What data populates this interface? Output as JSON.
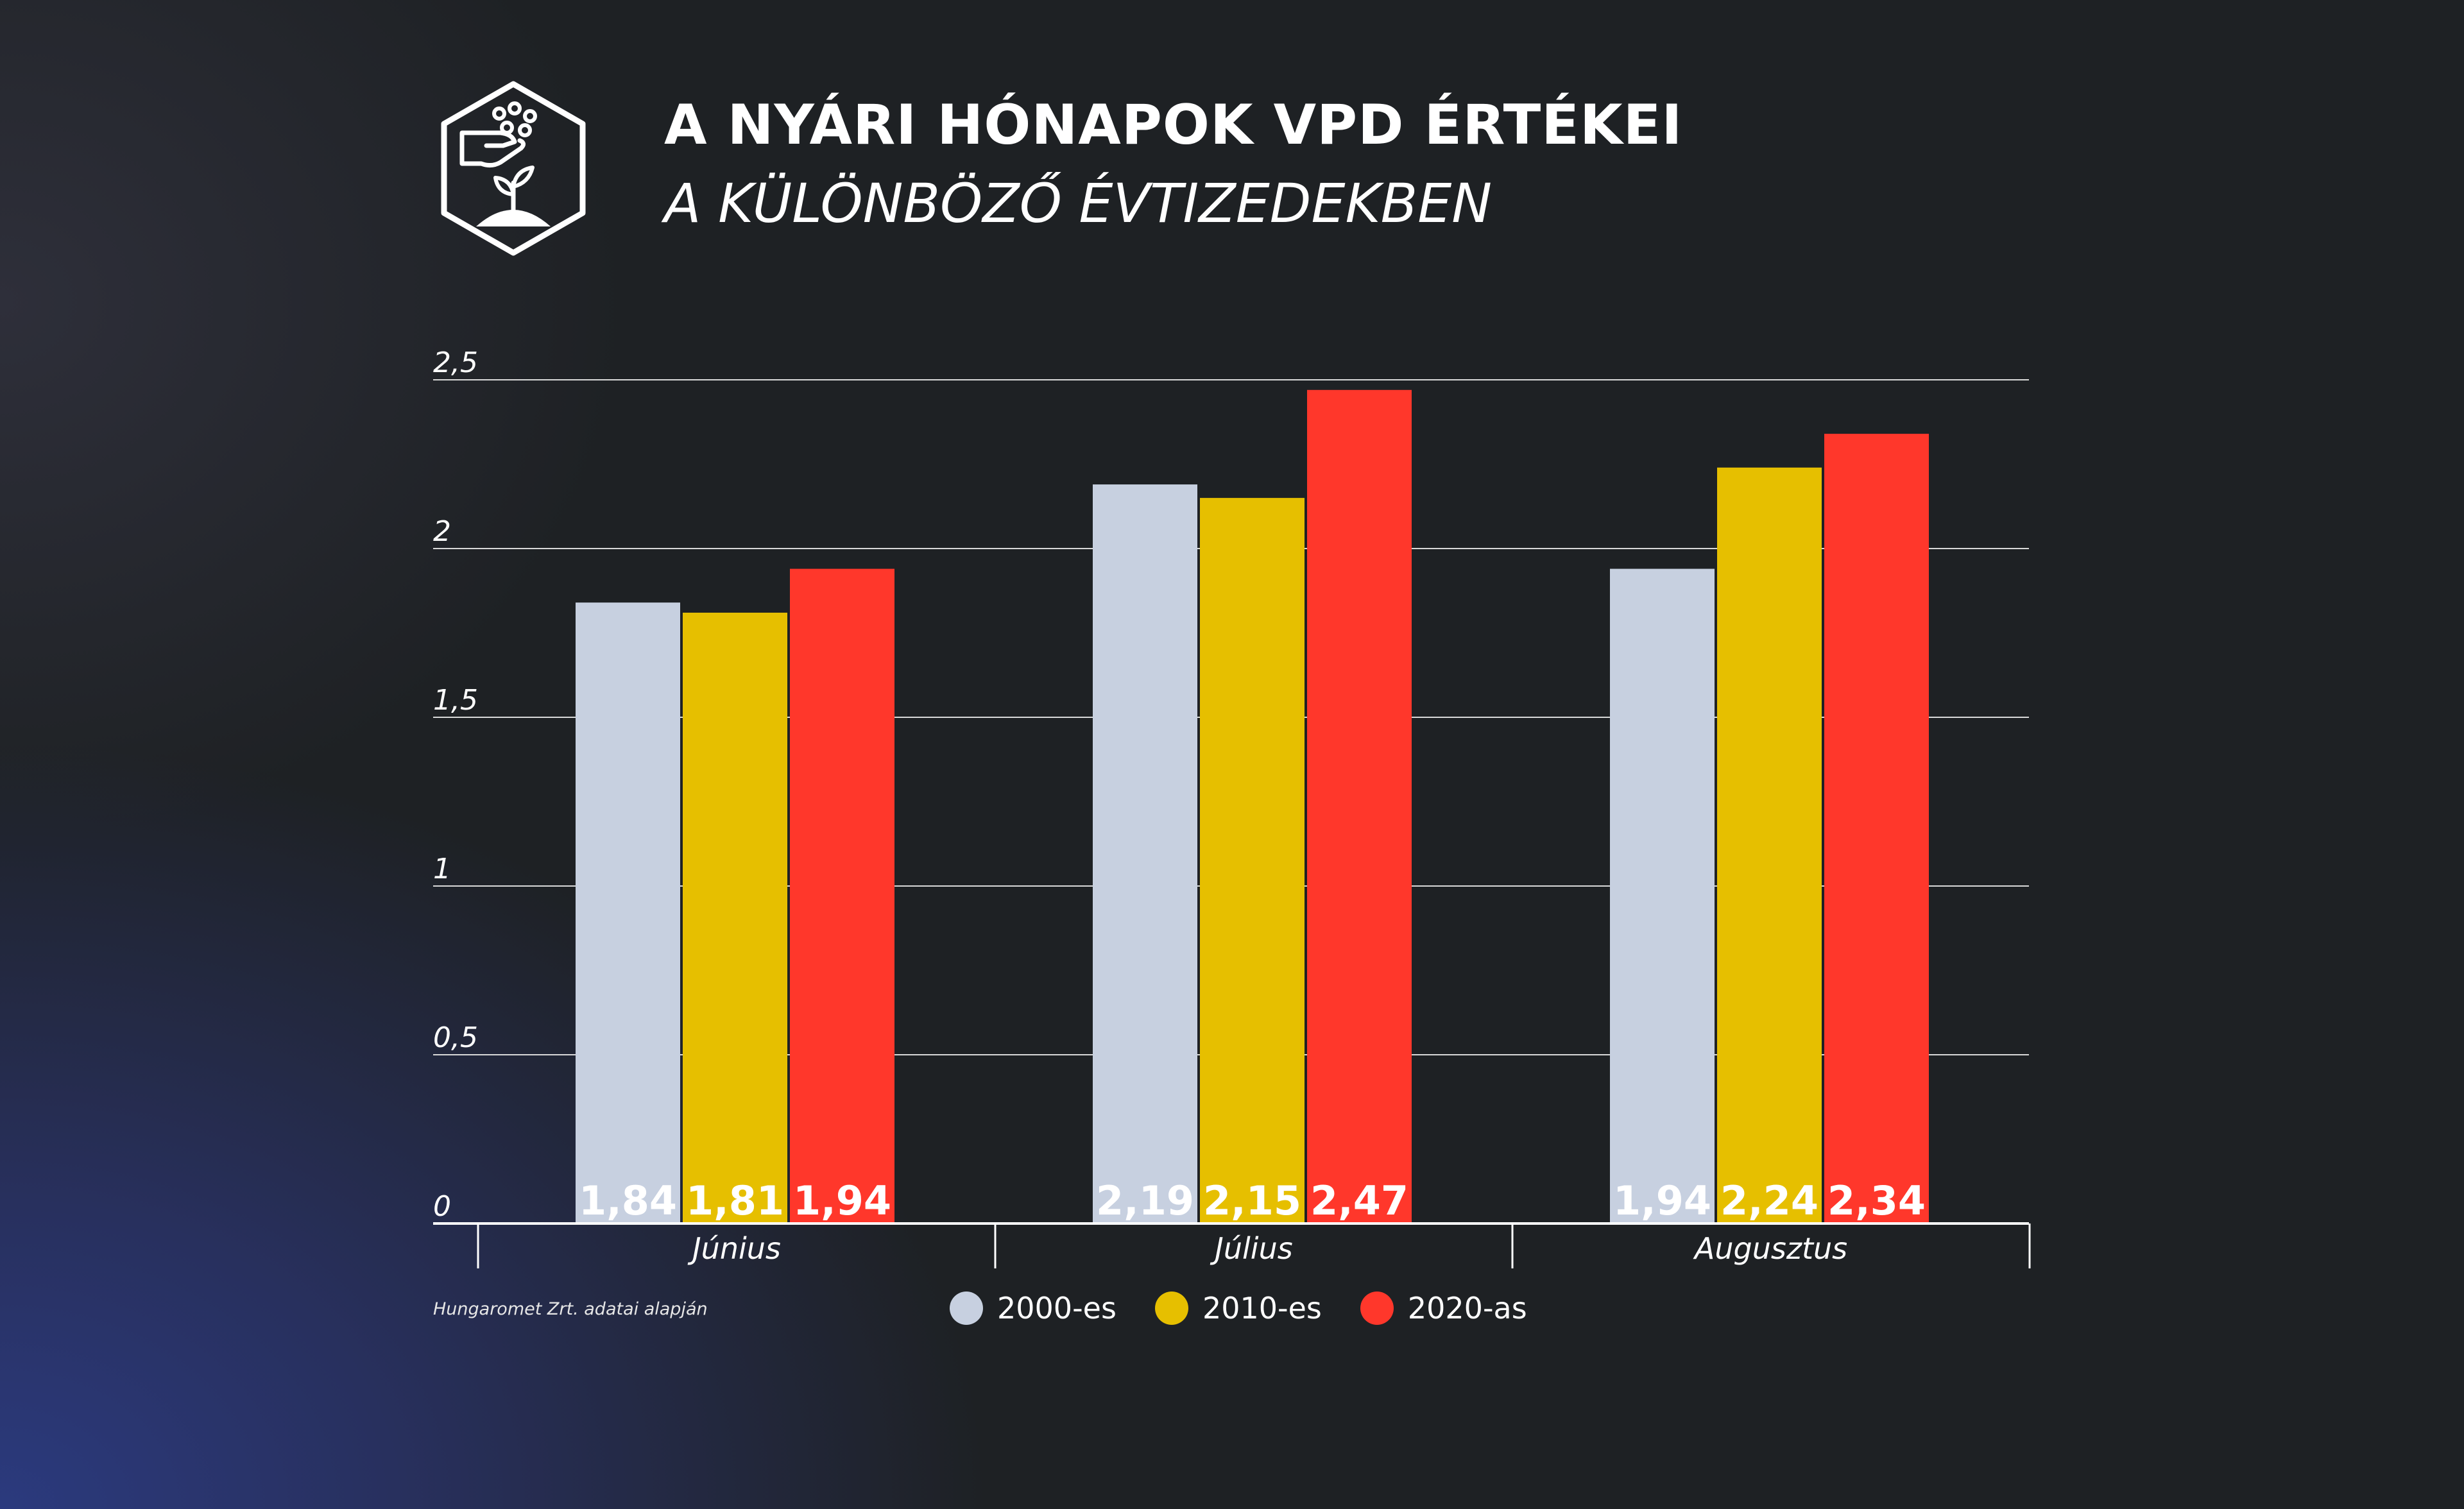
{
  "header": {
    "title": "A NYÁRI HÓNAPOK VPD ÉRTÉKEI",
    "subtitle": "A KÜLÖNBÖZŐ ÉVTIZEDEKBEN",
    "logo_icon": "hand-dropping-seeds-on-plant-icon"
  },
  "chart_data": {
    "type": "bar",
    "title": "A NYÁRI HÓNAPOK VPD ÉRTÉKEI",
    "subtitle": "A KÜLÖNBÖZŐ ÉVTIZEDEKBEN",
    "categories": [
      "Június",
      "Július",
      "Augusztus"
    ],
    "series": [
      {
        "name": "2000-es",
        "color": "#c7d0e0",
        "values": [
          1.84,
          2.19,
          1.94
        ],
        "labels": [
          "1,84",
          "2,19",
          "1,94"
        ]
      },
      {
        "name": "2010-es",
        "color": "#e6bf00",
        "values": [
          1.81,
          2.15,
          2.24
        ],
        "labels": [
          "1,81",
          "2,15",
          "2,24"
        ]
      },
      {
        "name": "2020-as",
        "color": "#ff372b",
        "values": [
          1.94,
          2.47,
          2.34
        ],
        "labels": [
          "1,94",
          "2,47",
          "2,34"
        ]
      }
    ],
    "yticks": [
      0,
      0.5,
      1,
      1.5,
      2,
      2.5
    ],
    "ytick_labels": [
      "0",
      "0,5",
      "1",
      "1,5",
      "2",
      "2,5"
    ],
    "ylim": [
      0,
      2.5
    ],
    "grid": true,
    "legend_position": "bottom-center"
  },
  "footer": {
    "source": "Hungaromet Zrt. adatai alapján"
  }
}
